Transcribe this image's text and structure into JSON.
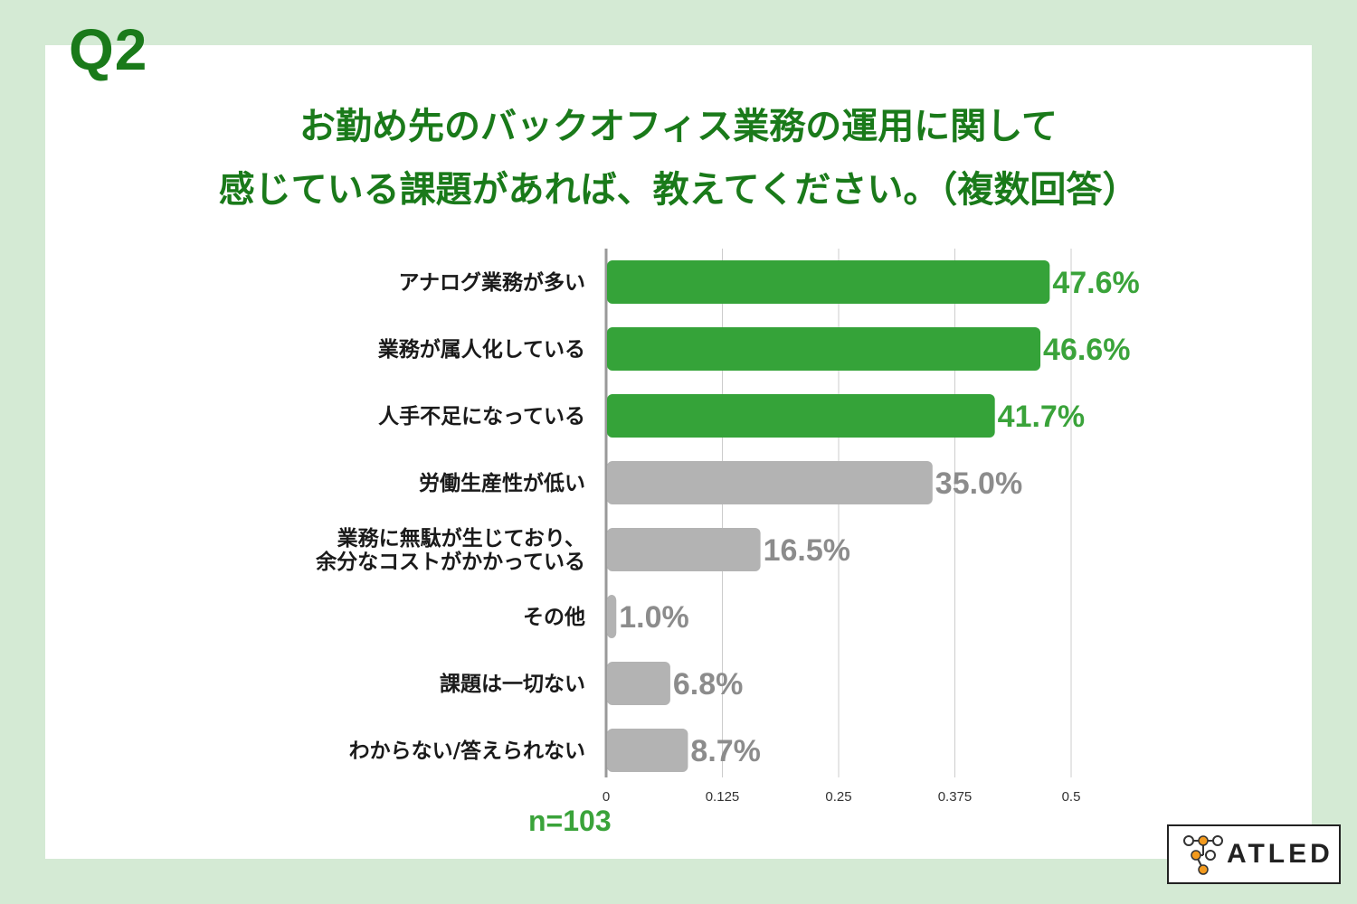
{
  "question_label": "Q2",
  "title_line1": "お勤め先のバックオフィス業務の運用に関して",
  "title_line2": "感じている課題があれば、教えてください。（複数回答）",
  "sample_size": "n=103",
  "logo_text": "ATLED",
  "colors": {
    "background": "#d4ead4",
    "title": "#1a7a1a",
    "highlight_bar": "#35a339",
    "highlight_label": "#3aa33a",
    "other_bar": "#b3b3b3",
    "other_label": "#8c8c8c"
  },
  "chart_data": {
    "type": "bar",
    "orientation": "horizontal",
    "categories": [
      "アナログ業務が多い",
      "業務が属人化している",
      "人手不足になっている",
      "労働生産性が低い",
      "業務に無駄が生じており、\n余分なコストがかかっている",
      "その他",
      "課題は一切ない",
      "わからない/答えられない"
    ],
    "values": [
      0.476,
      0.466,
      0.417,
      0.35,
      0.165,
      0.01,
      0.068,
      0.087
    ],
    "value_labels": [
      "47.6%",
      "46.6%",
      "41.7%",
      "35.0%",
      "16.5%",
      "1.0%",
      "6.8%",
      "8.7%"
    ],
    "highlighted": [
      true,
      true,
      true,
      false,
      false,
      false,
      false,
      false
    ],
    "xlim": [
      0,
      0.5
    ],
    "xticks": [
      0,
      0.125,
      0.25,
      0.375,
      0.5
    ],
    "xtick_labels": [
      "0",
      "0.125",
      "0.25",
      "0.375",
      "0.5"
    ],
    "grid": true
  }
}
